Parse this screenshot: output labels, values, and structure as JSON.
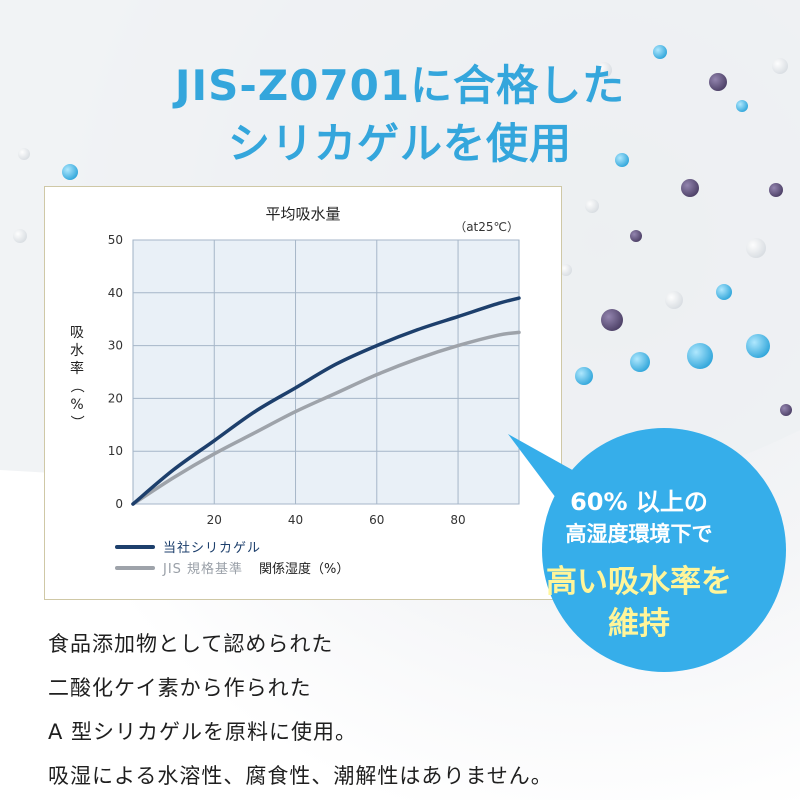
{
  "headline": {
    "line1": "JIS-Z0701に合格した",
    "line2": "シリカゲルを使用"
  },
  "chart_data": {
    "type": "line",
    "title": "平均吸水量",
    "note": "（at25℃）",
    "xlabel": "関係湿度（%）",
    "ylabel": "吸水率（%）",
    "xlim": [
      0,
      95
    ],
    "ylim": [
      0,
      50
    ],
    "x_ticks": [
      20,
      40,
      60,
      80
    ],
    "y_ticks": [
      0,
      10,
      20,
      30,
      40,
      50
    ],
    "grid": true,
    "legend_position": "bottom-left",
    "series": [
      {
        "name": "当社シリカゲル",
        "color": "#1d3f6c",
        "points": [
          [
            0,
            0
          ],
          [
            10,
            6.5
          ],
          [
            20,
            12
          ],
          [
            30,
            17.5
          ],
          [
            40,
            22
          ],
          [
            50,
            26.5
          ],
          [
            60,
            30
          ],
          [
            70,
            33
          ],
          [
            80,
            35.5
          ],
          [
            90,
            38
          ],
          [
            95,
            39
          ]
        ]
      },
      {
        "name": "JIS 規格基準",
        "color": "#9ea3aa",
        "points": [
          [
            0,
            0
          ],
          [
            10,
            5
          ],
          [
            20,
            9.5
          ],
          [
            30,
            13.5
          ],
          [
            40,
            17.5
          ],
          [
            50,
            21
          ],
          [
            60,
            24.5
          ],
          [
            70,
            27.5
          ],
          [
            80,
            30
          ],
          [
            90,
            32
          ],
          [
            95,
            32.5
          ]
        ]
      }
    ]
  },
  "bubble": {
    "line1": "60% 以上の",
    "line2": "高湿度環境下で",
    "line3": "高い吸水率を",
    "line4": "維持",
    "color": "#36aeea",
    "highlight_color": "#fff59a"
  },
  "body": {
    "line1": "食品添加物として認められた",
    "line2": "二酸化ケイ素から作られた",
    "line3": "A 型シリカゲルを原料に使用。",
    "line4": "吸湿による水溶性、腐食性、潮解性はありません。"
  }
}
